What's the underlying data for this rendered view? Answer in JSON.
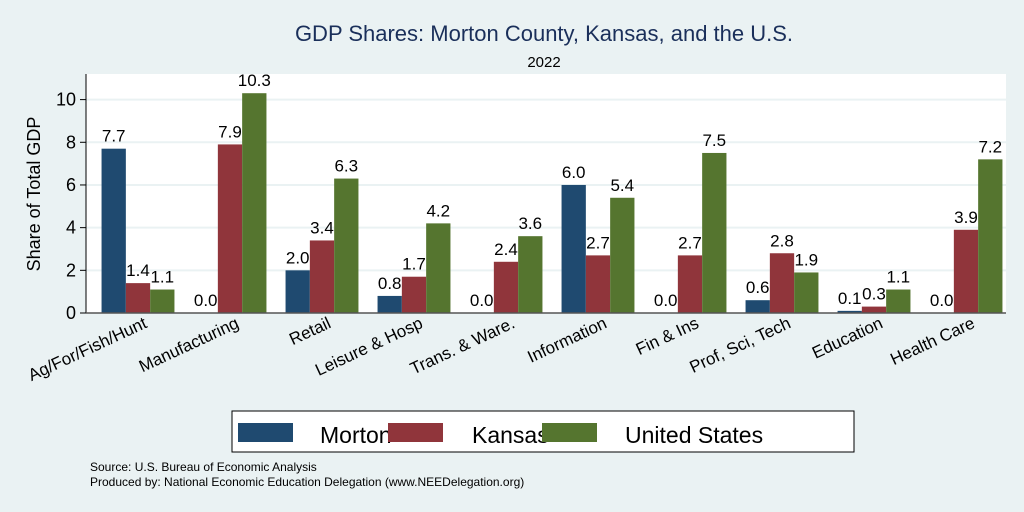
{
  "chart_data": {
    "type": "bar",
    "title": "GDP Shares: Morton County, Kansas, and the U.S.",
    "subtitle": "2022",
    "xlabel": "",
    "ylabel": "Share of Total GDP",
    "ylim": [
      0,
      11.2
    ],
    "yticks": [
      0,
      2,
      4,
      6,
      8,
      10
    ],
    "grid": true,
    "legend_position": "bottom",
    "categories": [
      "Ag/For/Fish/Hunt",
      "Manufacturing",
      "Retail",
      "Leisure & Hosp",
      "Trans. & Ware.",
      "Information",
      "Fin & Ins",
      "Prof, Sci, Tech",
      "Education",
      "Health Care"
    ],
    "series": [
      {
        "name": "Morton",
        "color": "#1f4a70",
        "values": [
          7.7,
          0.0,
          2.0,
          0.8,
          0.0,
          6.0,
          0.0,
          0.6,
          0.1,
          0.0
        ]
      },
      {
        "name": "Kansas",
        "color": "#90353b",
        "values": [
          1.4,
          7.9,
          3.4,
          1.7,
          2.4,
          2.7,
          2.7,
          2.8,
          0.3,
          3.9
        ]
      },
      {
        "name": "United States",
        "color": "#55752f",
        "values": [
          1.1,
          10.3,
          6.3,
          4.2,
          3.6,
          5.4,
          7.5,
          1.9,
          1.1,
          7.2
        ]
      }
    ],
    "notes": [
      "Source: U.S. Bureau of Economic Analysis",
      "Produced by: National Economic Education Delegation (www.NEEDelegation.org)"
    ]
  },
  "colors": {
    "background": "#eaf2f3",
    "plot_background": "#ffffff",
    "gridline": "#eaf2f3",
    "title": "#1a2f5a"
  }
}
